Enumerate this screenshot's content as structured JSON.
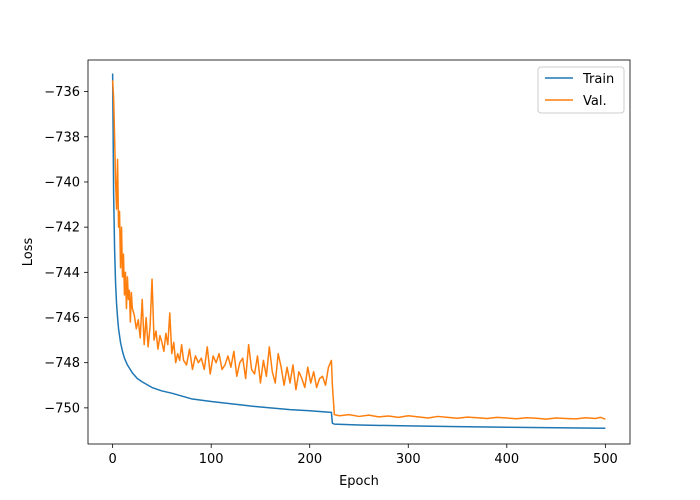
{
  "chart_data": {
    "type": "line",
    "title": "",
    "xlabel": "Epoch",
    "ylabel": "Loss",
    "xlim": [
      -25,
      525
    ],
    "ylim": [
      -751.6,
      -734.6
    ],
    "xticks": [
      0,
      100,
      200,
      300,
      400,
      500
    ],
    "yticks": [
      -750,
      -748,
      -746,
      -744,
      -742,
      -740,
      -738,
      -736
    ],
    "xtick_labels": [
      "0",
      "100",
      "200",
      "300",
      "400",
      "500"
    ],
    "ytick_labels": [
      "−750",
      "−748",
      "−746",
      "−744",
      "−742",
      "−740",
      "−738",
      "−736"
    ],
    "grid": false,
    "legend_position": "top-right",
    "series": [
      {
        "name": "Train",
        "color": "#1f77b4",
        "x": [
          0,
          1,
          2,
          3,
          4,
          5,
          6,
          8,
          10,
          12,
          15,
          20,
          25,
          30,
          40,
          50,
          60,
          80,
          100,
          120,
          140,
          160,
          180,
          200,
          215,
          222,
          223,
          225,
          250,
          300,
          350,
          400,
          450,
          500
        ],
        "y": [
          -735.2,
          -740.5,
          -743.0,
          -744.5,
          -745.4,
          -746.0,
          -746.5,
          -747.1,
          -747.5,
          -747.8,
          -748.1,
          -748.45,
          -748.7,
          -748.85,
          -749.1,
          -749.25,
          -749.35,
          -749.6,
          -749.72,
          -749.82,
          -749.92,
          -750.0,
          -750.08,
          -750.13,
          -750.18,
          -750.2,
          -750.68,
          -750.72,
          -750.76,
          -750.8,
          -750.83,
          -750.86,
          -750.88,
          -750.9
        ]
      },
      {
        "name": "Val.",
        "color": "#ff7f0e",
        "x": [
          0,
          1,
          2,
          3,
          4,
          5,
          6,
          7,
          8,
          9,
          10,
          11,
          12,
          13,
          14,
          15,
          16,
          17,
          18,
          19,
          20,
          22,
          24,
          26,
          28,
          30,
          32,
          34,
          36,
          38,
          40,
          42,
          44,
          46,
          48,
          50,
          52,
          54,
          56,
          58,
          60,
          62,
          64,
          66,
          68,
          70,
          72,
          75,
          78,
          81,
          84,
          87,
          90,
          93,
          96,
          99,
          102,
          105,
          108,
          111,
          114,
          117,
          120,
          123,
          126,
          129,
          132,
          135,
          138,
          141,
          144,
          147,
          150,
          153,
          156,
          159,
          162,
          165,
          168,
          171,
          174,
          177,
          180,
          183,
          186,
          189,
          192,
          195,
          198,
          201,
          204,
          207,
          210,
          213,
          216,
          219,
          222,
          223,
          225,
          230,
          240,
          250,
          260,
          270,
          280,
          290,
          300,
          310,
          320,
          330,
          340,
          350,
          360,
          370,
          380,
          390,
          400,
          410,
          420,
          430,
          440,
          450,
          460,
          470,
          480,
          490,
          495,
          500
        ],
        "y": [
          -735.5,
          -736.3,
          -738.0,
          -740.0,
          -741.2,
          -739.0,
          -742.0,
          -741.3,
          -743.8,
          -742.0,
          -744.2,
          -743.2,
          -745.0,
          -744.0,
          -745.6,
          -744.2,
          -745.2,
          -744.8,
          -746.2,
          -744.9,
          -745.6,
          -745.9,
          -746.5,
          -746.1,
          -746.9,
          -745.2,
          -747.2,
          -746.0,
          -747.3,
          -746.4,
          -744.3,
          -747.0,
          -746.6,
          -747.4,
          -746.8,
          -747.1,
          -747.5,
          -746.7,
          -747.2,
          -745.8,
          -747.6,
          -747.1,
          -748.0,
          -747.6,
          -747.9,
          -747.2,
          -747.9,
          -748.1,
          -747.4,
          -748.3,
          -747.7,
          -748.0,
          -747.8,
          -748.3,
          -747.3,
          -748.5,
          -747.7,
          -748.0,
          -747.6,
          -748.3,
          -748.1,
          -747.7,
          -748.2,
          -747.5,
          -748.6,
          -748.0,
          -747.8,
          -748.7,
          -747.2,
          -748.3,
          -748.5,
          -747.7,
          -748.9,
          -747.9,
          -748.6,
          -747.3,
          -748.4,
          -748.9,
          -747.6,
          -748.2,
          -749.0,
          -748.2,
          -748.9,
          -748.1,
          -749.2,
          -748.4,
          -748.7,
          -749.1,
          -748.2,
          -748.9,
          -748.4,
          -749.1,
          -748.7,
          -748.6,
          -749.0,
          -748.2,
          -747.9,
          -749.0,
          -750.3,
          -750.35,
          -750.3,
          -750.38,
          -750.32,
          -750.4,
          -750.36,
          -750.42,
          -750.35,
          -750.4,
          -750.45,
          -750.38,
          -750.42,
          -750.46,
          -750.41,
          -750.44,
          -750.47,
          -750.42,
          -750.45,
          -750.48,
          -750.44,
          -750.46,
          -750.5,
          -750.45,
          -750.47,
          -750.49,
          -750.44,
          -750.47,
          -750.42,
          -750.5
        ]
      }
    ]
  }
}
